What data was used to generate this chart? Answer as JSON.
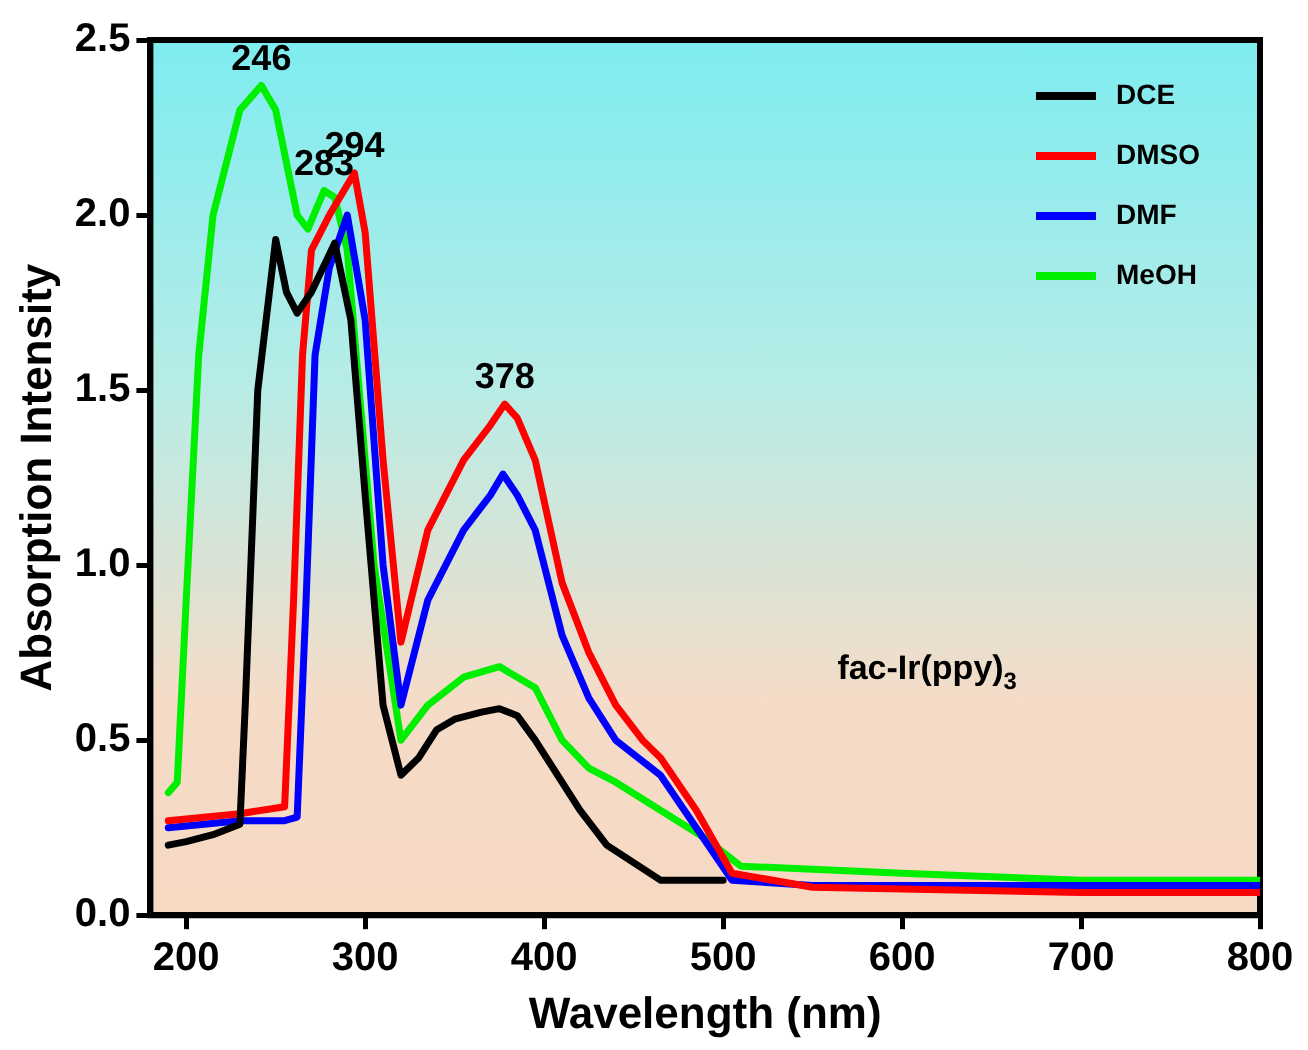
{
  "chart_data": {
    "type": "line",
    "xlabel": "Wavelength (nm)",
    "ylabel": "Absorption Intensity",
    "xlim": [
      180,
      800
    ],
    "xticks": [
      200,
      300,
      400,
      500,
      600,
      700,
      800
    ],
    "ylim": [
      0,
      2.5
    ],
    "yticks": [
      {
        "value": 0,
        "label": "0.0"
      },
      {
        "value": 0.5,
        "label": "0.5"
      },
      {
        "value": 1,
        "label": "1.0"
      },
      {
        "value": 1.5,
        "label": "1.5"
      },
      {
        "value": 2,
        "label": "2.0"
      },
      {
        "value": 2.5,
        "label": "2.5"
      }
    ],
    "grid": false,
    "legend": "top right",
    "marker": "none",
    "line_style": "solid",
    "series": [
      {
        "name": "DCE",
        "color": "#000000",
        "x": [
          190,
          200,
          215,
          230,
          233,
          240,
          250,
          256,
          262,
          270,
          283,
          292,
          300,
          310,
          320,
          330,
          340,
          350,
          365,
          375,
          385,
          395,
          405,
          420,
          435,
          450,
          465,
          500
        ],
        "values": [
          0.2,
          0.21,
          0.23,
          0.26,
          0.6,
          1.5,
          1.93,
          1.78,
          1.72,
          1.78,
          1.92,
          1.7,
          1.2,
          0.6,
          0.4,
          0.45,
          0.53,
          0.56,
          0.58,
          0.59,
          0.57,
          0.5,
          0.42,
          0.3,
          0.2,
          0.15,
          0.1,
          0.1
        ]
      },
      {
        "name": "DMSO",
        "color": "#ff0000",
        "x": [
          190,
          210,
          230,
          255,
          260,
          265,
          270,
          280,
          294,
          300,
          310,
          320,
          335,
          355,
          370,
          378,
          385,
          395,
          410,
          425,
          440,
          455,
          465,
          485,
          505,
          550,
          600,
          700,
          800
        ],
        "values": [
          0.27,
          0.28,
          0.29,
          0.31,
          0.9,
          1.6,
          1.9,
          2.0,
          2.12,
          1.95,
          1.3,
          0.78,
          1.1,
          1.3,
          1.4,
          1.46,
          1.42,
          1.3,
          0.95,
          0.75,
          0.6,
          0.5,
          0.45,
          0.3,
          0.12,
          0.08,
          0.075,
          0.065,
          0.065
        ]
      },
      {
        "name": "DMF",
        "color": "#0000ff",
        "x": [
          190,
          210,
          230,
          255,
          262,
          267,
          272,
          280,
          290,
          300,
          310,
          320,
          335,
          355,
          370,
          377,
          385,
          395,
          410,
          425,
          440,
          455,
          465,
          485,
          505,
          550,
          600,
          700,
          800
        ],
        "values": [
          0.25,
          0.26,
          0.27,
          0.27,
          0.28,
          0.9,
          1.6,
          1.85,
          2.0,
          1.7,
          1.0,
          0.6,
          0.9,
          1.1,
          1.2,
          1.26,
          1.2,
          1.1,
          0.8,
          0.62,
          0.5,
          0.44,
          0.4,
          0.25,
          0.1,
          0.085,
          0.085,
          0.085,
          0.085
        ]
      },
      {
        "name": "MeOH",
        "color": "#00ee00",
        "x": [
          190,
          195,
          200,
          207,
          215,
          230,
          242,
          250,
          262,
          268,
          277,
          283,
          290,
          300,
          305,
          320,
          335,
          355,
          375,
          395,
          410,
          425,
          440,
          465,
          490,
          510,
          600,
          700,
          800
        ],
        "values": [
          0.35,
          0.38,
          0.9,
          1.6,
          2.0,
          2.3,
          2.37,
          2.3,
          2.0,
          1.96,
          2.07,
          2.05,
          1.9,
          1.3,
          1.0,
          0.5,
          0.6,
          0.68,
          0.71,
          0.65,
          0.5,
          0.42,
          0.38,
          0.3,
          0.22,
          0.14,
          0.12,
          0.1,
          0.1
        ]
      }
    ],
    "annotations": [
      {
        "text": "246",
        "x": 242,
        "y": 2.37
      },
      {
        "text": "283",
        "x": 277,
        "y": 2.07
      },
      {
        "text": "294",
        "x": 294,
        "y": 2.12
      },
      {
        "text": "378",
        "x": 378,
        "y": 1.46
      },
      "fac-Ir(ppy)$_{3}$"
    ]
  }
}
